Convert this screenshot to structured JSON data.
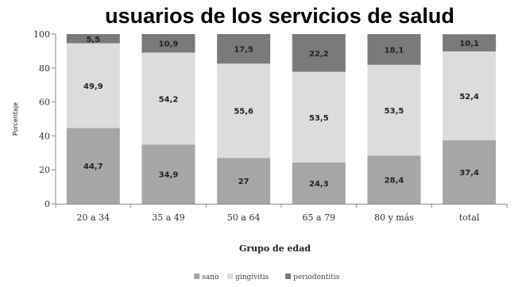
{
  "chart_data": {
    "type": "bar",
    "stacked": true,
    "title": "usuarios de los servicios de salud",
    "xlabel": "Grupo de edad",
    "ylabel": "Porcentaje",
    "ylim": [
      0,
      100
    ],
    "yticks": [
      0,
      20,
      40,
      60,
      80,
      100
    ],
    "grid": false,
    "legend": "bottom",
    "categories": [
      "20 a 34",
      "35 a 49",
      "50 a 64",
      "65 a 79",
      "80 y más",
      "total"
    ],
    "series": [
      {
        "name": "sano",
        "color": "#a6a6a6",
        "values": [
          44.7,
          34.9,
          27,
          24.3,
          28.4,
          37.4
        ],
        "labels": [
          "44,7",
          "34,9",
          "27",
          "24,3",
          "28,4",
          "37,4"
        ]
      },
      {
        "name": "gingivitis",
        "color": "#dcdcdc",
        "values": [
          49.9,
          54.2,
          55.6,
          53.5,
          53.5,
          52.4
        ],
        "labels": [
          "49,9",
          "54,2",
          "55,6",
          "53,5",
          "53,5",
          "52,4"
        ]
      },
      {
        "name": "periodontitis",
        "color": "#7a7a7a",
        "values": [
          5.5,
          10.9,
          17.5,
          22.2,
          18.1,
          10.1
        ],
        "labels": [
          "5,5",
          "10,9",
          "17,5",
          "22,2",
          "18,1",
          "10,1"
        ]
      }
    ]
  }
}
